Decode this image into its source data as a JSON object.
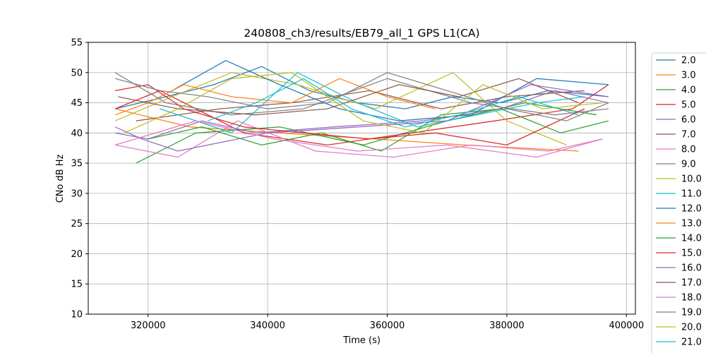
{
  "chart_data": {
    "type": "line",
    "title": "240808_ch3/results/EB79_all_1 GPS L1(CA)",
    "xlabel": "Time (s)",
    "ylabel": "CNo dB Hz",
    "xlim": [
      310000,
      401500
    ],
    "ylim": [
      10,
      55
    ],
    "xticks": [
      320000,
      340000,
      360000,
      380000,
      400000
    ],
    "xtick_labels": [
      "320000",
      "340000",
      "360000",
      "380000",
      "400000"
    ],
    "yticks": [
      10,
      15,
      20,
      25,
      30,
      35,
      40,
      45,
      50,
      55
    ],
    "ytick_labels": [
      "10",
      "15",
      "20",
      "25",
      "30",
      "35",
      "40",
      "45",
      "50",
      "55"
    ],
    "grid": true,
    "legend_position": "right-outside",
    "series": [
      {
        "name": "2.0",
        "color": "#1f77b4",
        "x": [
          314500,
          323000,
          331000,
          339000,
          347000,
          355000,
          363000,
          371000,
          379000,
          387000,
          397000
        ],
        "values": [
          44,
          46,
          48,
          51,
          47,
          45,
          44,
          46,
          45,
          47,
          46
        ]
      },
      {
        "name": "3.0",
        "color": "#ff7f0e",
        "x": [
          314500,
          327000,
          342000,
          358000,
          373000,
          392000
        ],
        "values": [
          44,
          41,
          40,
          39,
          38,
          37
        ]
      },
      {
        "name": "4.0",
        "color": "#2ca02c",
        "x": [
          318000,
          328000,
          342000,
          356000,
          370000,
          383000,
          395000
        ],
        "values": [
          35,
          40,
          41,
          38,
          42,
          45,
          43
        ]
      },
      {
        "name": "5.0",
        "color": "#d62728",
        "x": [
          314500,
          322000,
          336000,
          350000,
          364000,
          378000,
          391000,
          397000
        ],
        "values": [
          44,
          47,
          40,
          38,
          40,
          42,
          44,
          48
        ]
      },
      {
        "name": "6.0",
        "color": "#9467bd",
        "x": [
          314500,
          320000,
          329000,
          338000,
          351000,
          366000,
          379000,
          388000,
          397000
        ],
        "values": [
          40,
          39,
          42,
          40,
          41,
          42,
          44,
          47,
          45
        ]
      },
      {
        "name": "7.0",
        "color": "#8c564b",
        "x": [
          318000,
          332000,
          344000,
          357000,
          369000,
          380000,
          393000
        ],
        "values": [
          42,
          44,
          45,
          47,
          44,
          46,
          47
        ]
      },
      {
        "name": "8.0",
        "color": "#e377c2",
        "x": [
          314500,
          325000,
          335000,
          348000,
          361000,
          374000,
          387000,
          396000
        ],
        "values": [
          38,
          36,
          42,
          37,
          36,
          38,
          37,
          39
        ]
      },
      {
        "name": "9.0",
        "color": "#7f7f7f",
        "x": [
          314500,
          323000,
          334000,
          346000,
          360000,
          374000,
          388000,
          397000
        ],
        "values": [
          50,
          45,
          43,
          44,
          49,
          45,
          43,
          44
        ]
      },
      {
        "name": "10.0",
        "color": "#bcbd22",
        "x": [
          314500,
          324000,
          334000,
          345000,
          358000,
          371000,
          380000,
          390000
        ],
        "values": [
          42,
          46,
          50,
          48,
          44,
          50,
          42,
          38
        ]
      },
      {
        "name": "11.0",
        "color": "#17becf",
        "x": [
          322000,
          334000,
          345000,
          355000,
          365000,
          375000,
          385000,
          393000
        ],
        "values": [
          44,
          40,
          50,
          45,
          41,
          43,
          45,
          46
        ]
      },
      {
        "name": "12.0",
        "color": "#1f77b4",
        "x": [
          324000,
          333000,
          342000,
          352000,
          362000,
          374000,
          385000,
          397000
        ],
        "values": [
          47,
          52,
          48,
          44,
          42,
          43,
          49,
          48
        ]
      },
      {
        "name": "13.0",
        "color": "#ff7f0e",
        "x": [
          314500,
          320000,
          326000,
          334000,
          344000,
          352000,
          360000,
          368000
        ],
        "values": [
          43,
          45,
          48,
          46,
          45,
          49,
          46,
          44
        ]
      },
      {
        "name": "14.0",
        "color": "#2ca02c",
        "x": [
          320000,
          329000,
          339000,
          349000,
          359000,
          369000,
          379000,
          389000,
          397000
        ],
        "values": [
          39,
          41,
          38,
          40,
          37,
          43,
          44,
          40,
          42
        ]
      },
      {
        "name": "15.0",
        "color": "#d62728",
        "x": [
          314500,
          320000,
          326000,
          336000,
          346000,
          357000,
          368000,
          380000,
          393000
        ],
        "values": [
          47,
          48,
          44,
          41,
          40,
          39,
          40,
          38,
          44
        ]
      },
      {
        "name": "16.0",
        "color": "#9467bd",
        "x": [
          314500,
          319000,
          325000,
          340000,
          355000,
          370000,
          384000,
          397000
        ],
        "values": [
          41,
          39,
          37,
          40,
          41,
          42,
          48,
          46
        ]
      },
      {
        "name": "17.0",
        "color": "#8c564b",
        "x": [
          315000,
          325000,
          338000,
          350000,
          362000,
          372000,
          382000,
          392000
        ],
        "values": [
          46,
          44,
          43,
          44,
          48,
          46,
          49,
          45
        ]
      },
      {
        "name": "18.0",
        "color": "#e377c2",
        "x": [
          314500,
          328000,
          341000,
          355000,
          370000,
          385000,
          396000
        ],
        "values": [
          38,
          42,
          39,
          37,
          38,
          36,
          39
        ]
      },
      {
        "name": "19.0",
        "color": "#7f7f7f",
        "x": [
          314500,
          322000,
          330000,
          340000,
          350000,
          360000,
          370000,
          380000,
          390000,
          397000
        ],
        "values": [
          49,
          47,
          46,
          44,
          45,
          50,
          47,
          44,
          42,
          45
        ]
      },
      {
        "name": "20.0",
        "color": "#bcbd22",
        "x": [
          316000,
          325000,
          334000,
          344000,
          356000,
          366000,
          376000,
          386000,
          396000
        ],
        "values": [
          40,
          44,
          49,
          50,
          42,
          40,
          48,
          44,
          45
        ]
      },
      {
        "name": "21.0",
        "color": "#17becf",
        "x": [
          330000,
          338000,
          346000,
          354000,
          363000,
          372000,
          382000,
          392000
        ],
        "values": [
          42,
          45,
          49,
          44,
          41,
          43,
          46,
          43
        ]
      }
    ]
  }
}
